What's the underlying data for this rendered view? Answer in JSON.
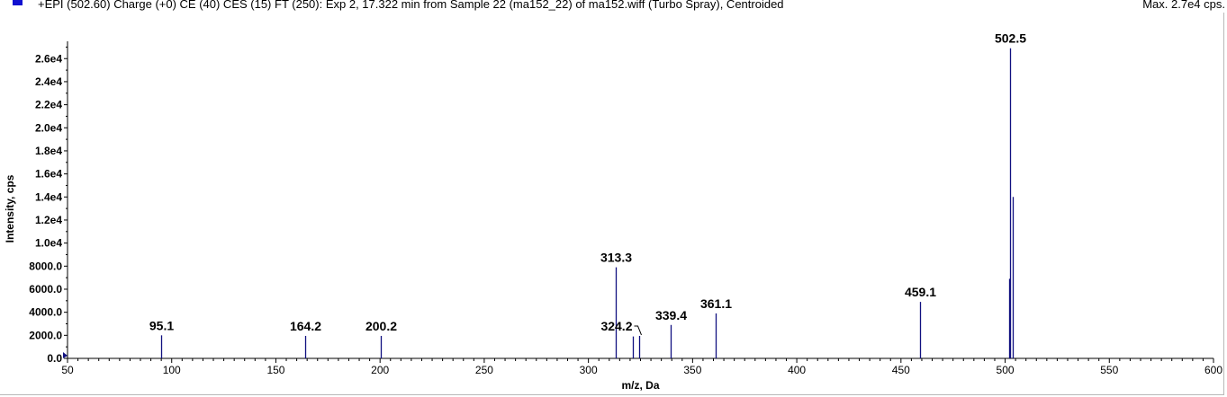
{
  "header": {
    "title": "+EPI (502.60) Charge (+0) CE (40) CES (15) FT (250): Exp 2, 17.322 min from Sample 22 (ma152_22) of ma152.wiff (Turbo Spray), Centroided",
    "max_label": "Max. 2.7e4 cps.",
    "swatch_color": "#1010d0"
  },
  "chart_data": {
    "type": "bar",
    "title": "+EPI (502.60) Charge (+0) CE (40) CES (15) FT (250): Exp 2, 17.322 min from Sample 22 (ma152_22) of ma152.wiff (Turbo Spray), Centroided",
    "xlabel": "m/z, Da",
    "ylabel": "Intensity, cps",
    "xlim": [
      50,
      600
    ],
    "ylim": [
      0,
      27500
    ],
    "x_ticks": [
      {
        "value": 50,
        "label": "50"
      },
      {
        "value": 100,
        "label": "100"
      },
      {
        "value": 150,
        "label": "150"
      },
      {
        "value": 200,
        "label": "200"
      },
      {
        "value": 250,
        "label": "250"
      },
      {
        "value": 300,
        "label": "300"
      },
      {
        "value": 350,
        "label": "350"
      },
      {
        "value": 400,
        "label": "400"
      },
      {
        "value": 450,
        "label": "450"
      },
      {
        "value": 500,
        "label": "500"
      },
      {
        "value": 550,
        "label": "550"
      },
      {
        "value": 600,
        "label": "600"
      }
    ],
    "y_ticks": [
      {
        "value": 0,
        "label": "0.0"
      },
      {
        "value": 2000,
        "label": "2000.0"
      },
      {
        "value": 4000,
        "label": "4000.0"
      },
      {
        "value": 6000,
        "label": "6000.0"
      },
      {
        "value": 8000,
        "label": "8000.0"
      },
      {
        "value": 10000,
        "label": "1.0e4"
      },
      {
        "value": 12000,
        "label": "1.2e4"
      },
      {
        "value": 14000,
        "label": "1.4e4"
      },
      {
        "value": 16000,
        "label": "1.6e4"
      },
      {
        "value": 18000,
        "label": "1.8e4"
      },
      {
        "value": 20000,
        "label": "2.0e4"
      },
      {
        "value": 22000,
        "label": "2.2e4"
      },
      {
        "value": 24000,
        "label": "2.4e4"
      },
      {
        "value": 26000,
        "label": "2.6e4"
      }
    ],
    "peaks": [
      {
        "mz": 95.1,
        "intensity": 2000,
        "label": "95.1"
      },
      {
        "mz": 164.2,
        "intensity": 1950,
        "label": "164.2"
      },
      {
        "mz": 200.2,
        "intensity": 1950,
        "label": "200.2"
      },
      {
        "mz": 313.3,
        "intensity": 7900,
        "label": "313.3"
      },
      {
        "mz": 321.2,
        "intensity": 1900,
        "label": ""
      },
      {
        "mz": 324.2,
        "intensity": 1950,
        "label": "324.2",
        "leader": true
      },
      {
        "mz": 339.4,
        "intensity": 2900,
        "label": "339.4"
      },
      {
        "mz": 361.1,
        "intensity": 3900,
        "label": "361.1"
      },
      {
        "mz": 459.1,
        "intensity": 4900,
        "label": "459.1"
      },
      {
        "mz": 502.0,
        "intensity": 6900,
        "label": ""
      },
      {
        "mz": 502.5,
        "intensity": 26900,
        "label": "502.5"
      },
      {
        "mz": 503.5,
        "intensity": 14000,
        "label": ""
      }
    ],
    "peak_color": "#101080",
    "grid": false
  }
}
